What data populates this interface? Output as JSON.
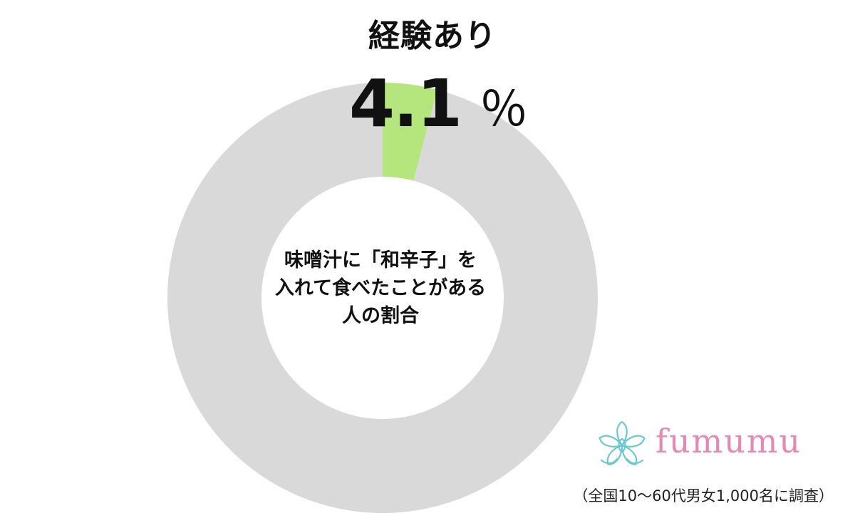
{
  "chart_data": {
    "type": "pie",
    "style": "donut",
    "title": "経験あり",
    "series": [
      {
        "label": "経験あり",
        "value": 4.1,
        "color": "#b5e67e"
      },
      {
        "label": "",
        "value": 95.9,
        "color": "#d9d9d9"
      }
    ],
    "highlight": {
      "value": "4.1",
      "unit": "％"
    },
    "center_label": [
      "味噌汁に「和辛子」を",
      "入れて食べたことがある",
      "人の割合"
    ]
  },
  "brand": {
    "name": "fumumu",
    "mark_icon": "flower-icon",
    "color": "#e28ab3",
    "mark_color": "#6cc7cf"
  },
  "footnote": "（全国10～60代男女1,000名に調査）"
}
